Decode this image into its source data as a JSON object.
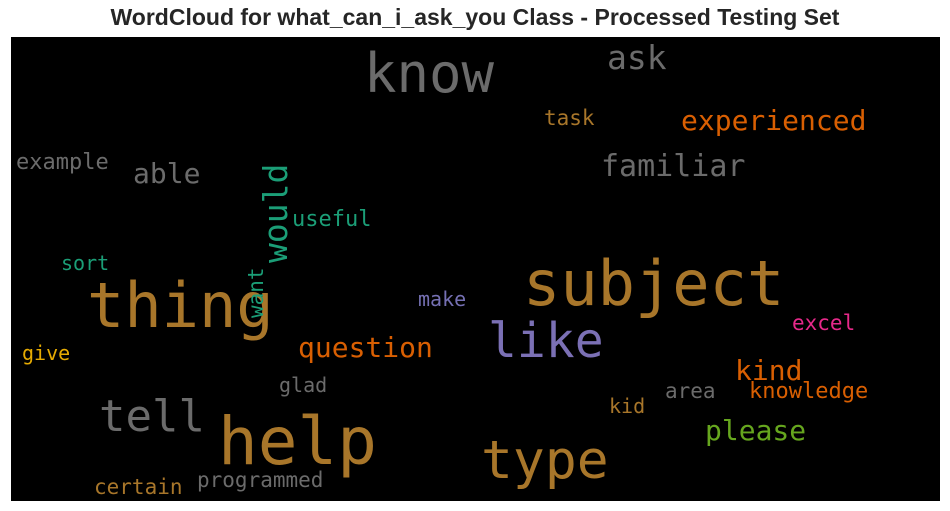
{
  "title": "WordCloud for what_can_i_ask_you Class - Processed Testing Set",
  "words": [
    {
      "text": "help",
      "color": "#a8762a"
    },
    {
      "text": "subject",
      "color": "#a8762a"
    },
    {
      "text": "thing",
      "color": "#a8762a"
    },
    {
      "text": "type",
      "color": "#a8762a"
    },
    {
      "text": "know",
      "color": "#6b6b6b"
    },
    {
      "text": "like",
      "color": "#7b70b5"
    },
    {
      "text": "tell",
      "color": "#6b6b6b"
    },
    {
      "text": "would",
      "color": "#1b9e77"
    },
    {
      "text": "ask",
      "color": "#6b6b6b"
    },
    {
      "text": "experienced",
      "color": "#d95f02"
    },
    {
      "text": "familiar",
      "color": "#6b6b6b"
    },
    {
      "text": "question",
      "color": "#d95f02"
    },
    {
      "text": "please",
      "color": "#66a61e"
    },
    {
      "text": "kind",
      "color": "#d95f02"
    },
    {
      "text": "able",
      "color": "#6b6b6b"
    },
    {
      "text": "knowledge",
      "color": "#d95f02"
    },
    {
      "text": "excel",
      "color": "#e7298a"
    },
    {
      "text": "useful",
      "color": "#1b9e77"
    },
    {
      "text": "task",
      "color": "#a8762a"
    },
    {
      "text": "example",
      "color": "#6b6b6b"
    },
    {
      "text": "make",
      "color": "#7570b3"
    },
    {
      "text": "sort",
      "color": "#1b9e77"
    },
    {
      "text": "want",
      "color": "#1b9e77"
    },
    {
      "text": "give",
      "color": "#e6ab02"
    },
    {
      "text": "glad",
      "color": "#6b6b6b"
    },
    {
      "text": "area",
      "color": "#6b6b6b"
    },
    {
      "text": "kid",
      "color": "#a8762a"
    },
    {
      "text": "certain",
      "color": "#a8762a"
    },
    {
      "text": "programmed",
      "color": "#6b6b6b"
    }
  ]
}
